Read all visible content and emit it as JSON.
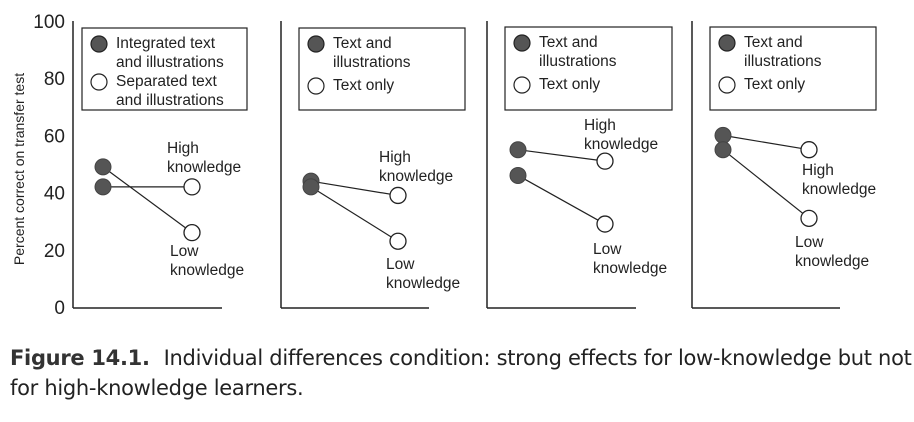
{
  "chart_data": [
    {
      "type": "line",
      "ylabel": "Percent correct on transfer test",
      "ylim": [
        0,
        100
      ],
      "yticks": [
        0,
        20,
        40,
        60,
        80,
        100
      ],
      "legend": [
        "Integrated text and illustrations",
        "Separated text and illustrations"
      ],
      "series": [
        {
          "name": "High knowledge",
          "values": [
            42,
            42
          ]
        },
        {
          "name": "Low knowledge",
          "values": [
            49,
            26
          ]
        }
      ]
    },
    {
      "type": "line",
      "ylim": [
        0,
        100
      ],
      "legend": [
        "Text and illustrations",
        "Text only"
      ],
      "series": [
        {
          "name": "High knowledge",
          "values": [
            44,
            39
          ]
        },
        {
          "name": "Low knowledge",
          "values": [
            42,
            23
          ]
        }
      ]
    },
    {
      "type": "line",
      "ylim": [
        0,
        100
      ],
      "legend": [
        "Text and illustrations",
        "Text only"
      ],
      "series": [
        {
          "name": "High knowledge",
          "values": [
            55,
            51
          ]
        },
        {
          "name": "Low knowledge",
          "values": [
            46,
            29
          ]
        }
      ]
    },
    {
      "type": "line",
      "ylim": [
        0,
        100
      ],
      "legend": [
        "Text and illustrations",
        "Text only"
      ],
      "series": [
        {
          "name": "High knowledge",
          "values": [
            60,
            55
          ]
        },
        {
          "name": "Low knowledge",
          "values": [
            55,
            31
          ]
        }
      ]
    }
  ],
  "colors": {
    "filled": "#555555",
    "open": "#ffffff",
    "line": "#222222"
  },
  "caption": {
    "label": "Figure 14.1.",
    "text": "Individual differences condition: strong effects for low-knowledge but not for high-knowledge learners."
  }
}
